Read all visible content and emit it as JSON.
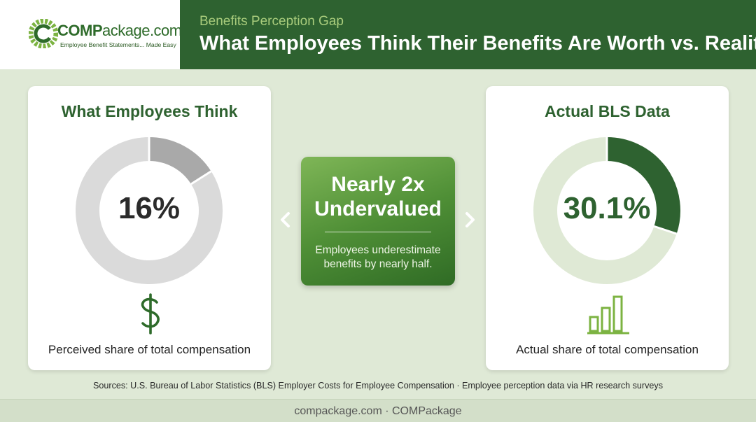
{
  "header": {
    "logo_bold": "COMP",
    "logo_rest": "ackage.com",
    "logo_mark": "®",
    "logo_tagline": "Employee Benefit Statements... Made Easy",
    "eyebrow": "Benefits Perception Gap",
    "headline": "What Employees Think Their Benefits Are Worth vs. Reality"
  },
  "chart_data": [
    {
      "type": "pie",
      "title": "What Employees Think",
      "values": [
        16,
        84
      ],
      "labels": [
        "",
        ""
      ],
      "display_value": "16%",
      "caption": "Perceived share of total compensation",
      "colors": [
        "#a9a9a9",
        "#dadada"
      ],
      "icon": "dollar-sign-icon"
    },
    {
      "type": "pie",
      "title": "Actual BLS Data",
      "values": [
        30.1,
        69.9
      ],
      "labels": [
        "",
        ""
      ],
      "display_value": "30.1%",
      "caption": "Actual share of total compensation",
      "colors": [
        "#2e6230",
        "#dfe9d5"
      ],
      "icon": "bar-chart-icon"
    }
  ],
  "callout": {
    "headline_line1": "Nearly 2x",
    "headline_line2": "Undervalued",
    "sub_line1": "Employees underestimate",
    "sub_line2": "benefits by nearly half."
  },
  "sources": "Sources: U.S. Bureau of Labor Statistics (BLS) Employer Costs for Employee Compensation · Employee perception data via HR research surveys",
  "footer": "compackage.com · COMPackage",
  "colors": {
    "brand_green": "#2e6230",
    "accent_green": "#a9cc7c",
    "background": "#dfe9d6"
  }
}
